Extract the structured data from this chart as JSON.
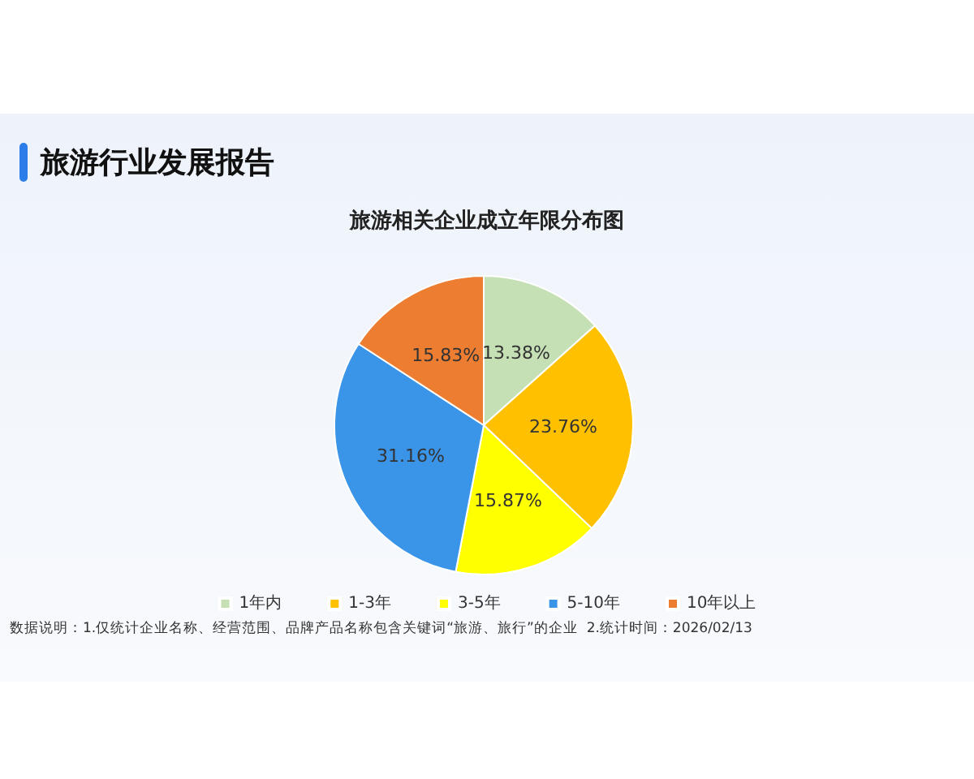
{
  "chart_data": {
    "type": "pie",
    "title": "旅游行业发展报告",
    "subtitle": "旅游相关企业成立年限分布图",
    "categories": [
      "1年内",
      "1-3年",
      "3-5年",
      "5-10年",
      "10年以上"
    ],
    "values": [
      13.38,
      23.76,
      15.87,
      31.16,
      15.83
    ],
    "value_labels": [
      "13.38%",
      "23.76%",
      "15.87%",
      "31.16%",
      "15.83%"
    ],
    "colors": [
      "#c5e0b4",
      "#ffc000",
      "#ffff00",
      "#3a95e8",
      "#ed7d31"
    ],
    "legend": "bottom",
    "annotations": [
      "数据说明：1.仅统计企业名称、经营范围、品牌产品名称包含关键词“旅游、旅行”的企业  2.统计时间：2026/02/13"
    ]
  }
}
